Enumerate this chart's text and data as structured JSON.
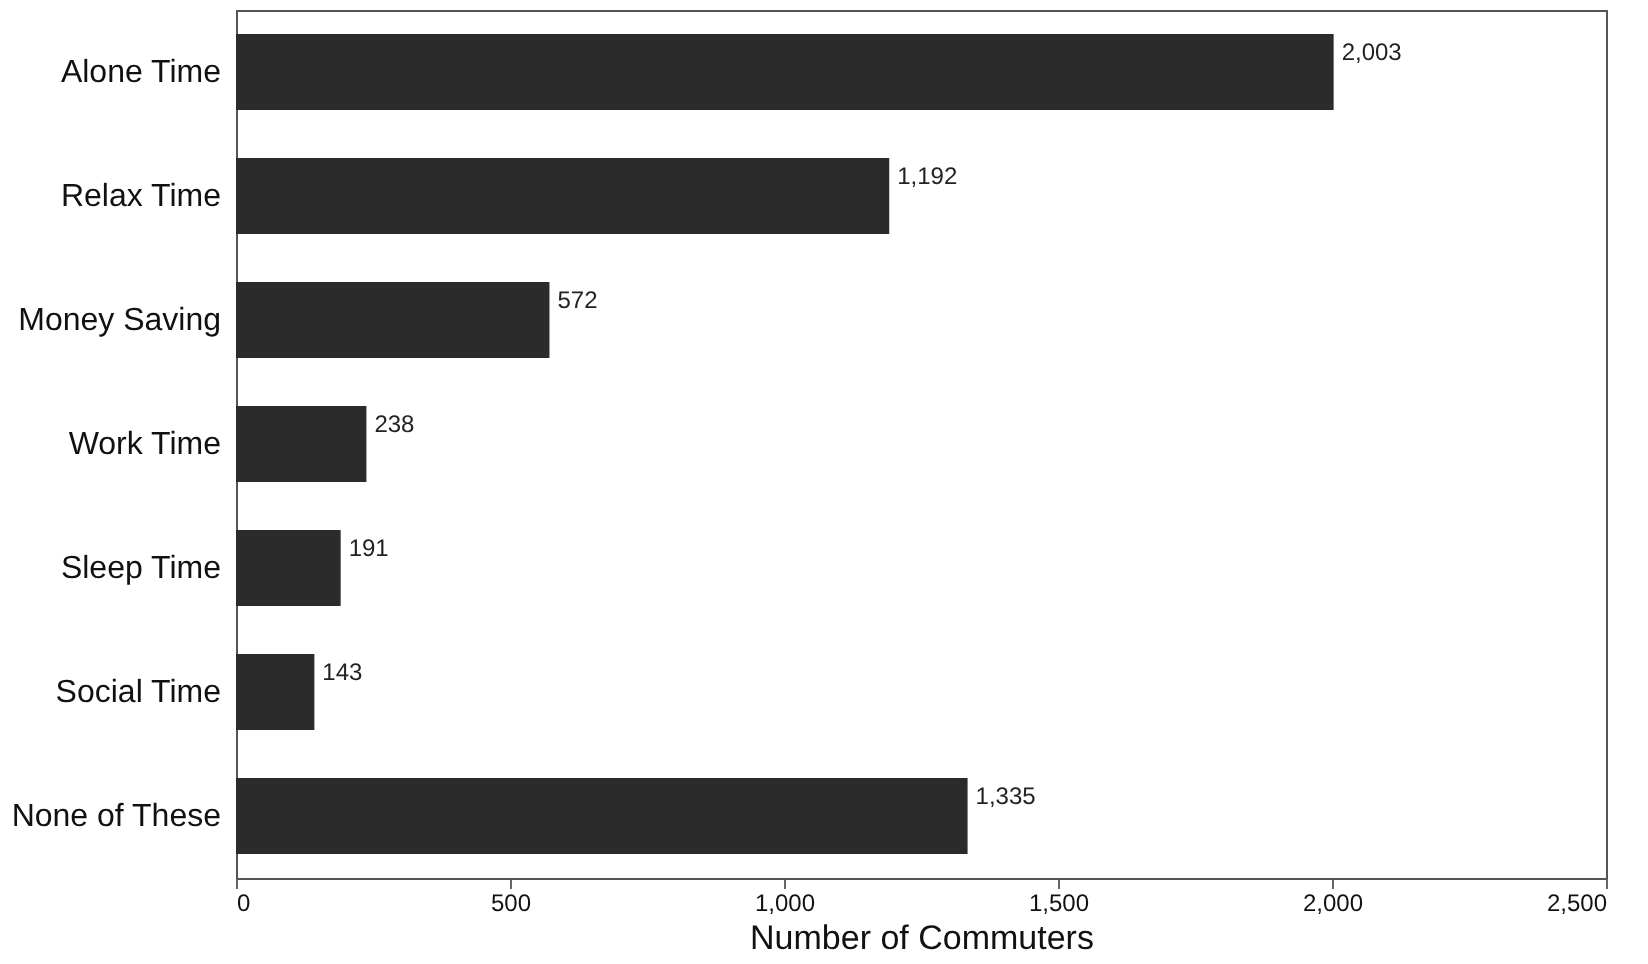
{
  "chart_data": {
    "type": "bar",
    "orientation": "horizontal",
    "xlabel": "Number of Commuters",
    "categories": [
      "Alone Time",
      "Relax Time",
      "Money Saving",
      "Work Time",
      "Sleep Time",
      "Social Time",
      "None of These"
    ],
    "values": [
      2003,
      1192,
      572,
      238,
      191,
      143,
      1335
    ],
    "value_labels": [
      "2,003",
      "1,192",
      "572",
      "238",
      "191",
      "143",
      "1,335"
    ],
    "color": "#2b2b2b",
    "xlim": [
      0,
      2500
    ],
    "xticks": [
      0,
      500,
      {
        "value": 1000,
        "label": "1,000"
      },
      {
        "value": 1500,
        "label": "1,500"
      },
      {
        "value": 2000,
        "label": "2,000"
      },
      {
        "value": 2500,
        "label": "2,500"
      }
    ],
    "grid": false
  }
}
